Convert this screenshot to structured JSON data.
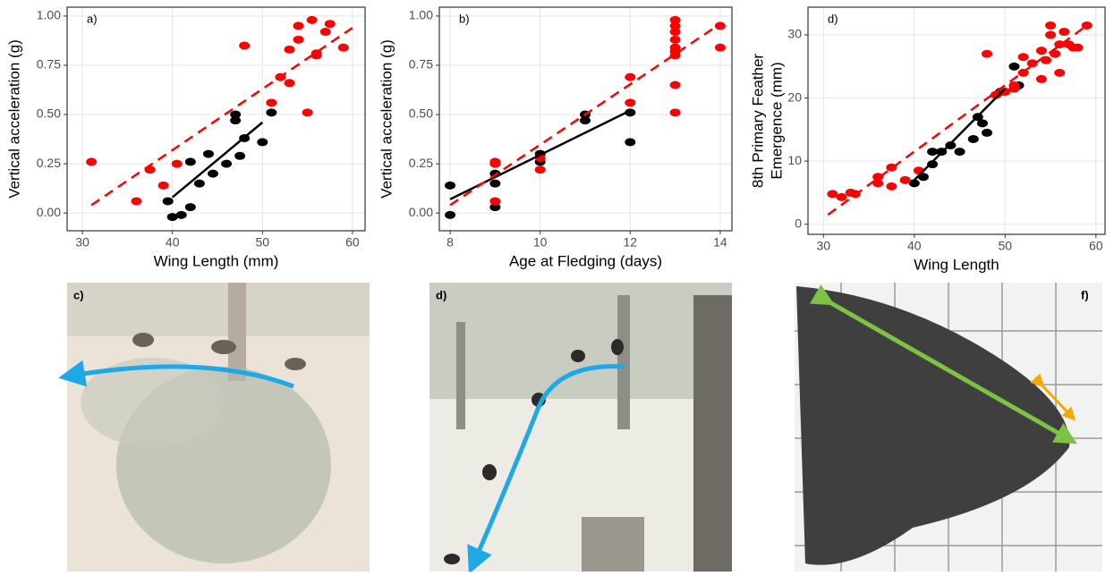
{
  "chart_data": [
    {
      "type": "scatter",
      "panel_label": "a)",
      "xlabel": "Wing Length (mm)",
      "ylabel": "Vertical acceleration (g)",
      "xlim": [
        28.3,
        61.4
      ],
      "ylim": [
        -0.09,
        1.045
      ],
      "xticks": [
        30,
        40,
        50,
        60
      ],
      "yticks": [
        {
          "value": 0,
          "label": "0.00"
        },
        {
          "value": 0.25,
          "label": "0.25"
        },
        {
          "value": 0.5,
          "label": "0.50"
        },
        {
          "value": 0.75,
          "label": "0.75"
        },
        {
          "value": 1,
          "label": "1.00"
        }
      ],
      "grid": true,
      "series": [
        {
          "color": "#000000",
          "x": [
            39.5,
            40,
            41,
            42,
            42,
            43,
            44,
            44.5,
            46,
            47,
            47,
            47.5,
            48,
            50,
            51
          ],
          "values": [
            0.06,
            -0.02,
            -0.01,
            0.03,
            0.26,
            0.15,
            0.3,
            0.2,
            0.25,
            0.5,
            0.47,
            0.29,
            0.38,
            0.36,
            0.51
          ]
        },
        {
          "color": "#ff0000",
          "x": [
            31,
            36,
            37.5,
            39,
            40.5,
            48,
            51,
            52,
            53,
            53,
            54,
            54,
            55,
            55.5,
            56,
            56,
            57,
            57.5,
            59
          ],
          "values": [
            0.26,
            0.06,
            0.22,
            0.14,
            0.25,
            0.85,
            0.56,
            0.69,
            0.66,
            0.83,
            0.95,
            0.88,
            0.51,
            0.98,
            0.8,
            0.81,
            0.92,
            0.96,
            0.84
          ]
        }
      ],
      "fits": [
        {
          "color": "#000000",
          "dashed": false,
          "x": [
            40,
            50
          ],
          "values": [
            0.08,
            0.46
          ]
        },
        {
          "color": "#ff0000",
          "dashed": true,
          "x": [
            31,
            60
          ],
          "values": [
            0.04,
            0.94
          ]
        }
      ]
    },
    {
      "type": "scatter",
      "panel_label": "b)",
      "xlabel": "Age at Fledging (days)",
      "ylabel": "Vertical acceleration (g)",
      "xlim": [
        7.76,
        14.26
      ],
      "ylim": [
        -0.09,
        1.045
      ],
      "xticks": [
        8,
        10,
        12,
        14
      ],
      "yticks": [
        {
          "value": 0,
          "label": "0.00"
        },
        {
          "value": 0.25,
          "label": "0.25"
        },
        {
          "value": 0.5,
          "label": "0.50"
        },
        {
          "value": 0.75,
          "label": "0.75"
        },
        {
          "value": 1,
          "label": "1.00"
        }
      ],
      "grid": true,
      "series": [
        {
          "color": "#000000",
          "x": [
            8,
            8,
            9,
            9,
            9,
            10,
            10,
            11,
            11,
            12,
            12
          ],
          "values": [
            0.14,
            -0.01,
            0.2,
            0.15,
            0.03,
            0.3,
            0.26,
            0.5,
            0.47,
            0.51,
            0.36
          ]
        },
        {
          "color": "#ff0000",
          "x": [
            9,
            9,
            9,
            10,
            10,
            12,
            12,
            13,
            13,
            13,
            13,
            13,
            13,
            13,
            13,
            13,
            14,
            14
          ],
          "values": [
            0.26,
            0.25,
            0.06,
            0.22,
            0.28,
            0.56,
            0.69,
            0.98,
            0.95,
            0.92,
            0.88,
            0.84,
            0.82,
            0.8,
            0.65,
            0.51,
            0.95,
            0.84
          ]
        }
      ],
      "fits": [
        {
          "color": "#000000",
          "dashed": false,
          "x": [
            8,
            12
          ],
          "values": [
            0.07,
            0.52
          ]
        },
        {
          "color": "#ff0000",
          "dashed": true,
          "x": [
            8,
            14
          ],
          "values": [
            0.04,
            0.96
          ]
        }
      ]
    },
    {
      "type": "scatter",
      "panel_label": "d)",
      "xlabel": "Wing Length",
      "ylabel": [
        "8th Primary Feather",
        "Emergence (mm)"
      ],
      "xlim": [
        28.3,
        61
      ],
      "ylim": [
        -1.6,
        34.4
      ],
      "xticks": [
        30,
        40,
        50,
        60
      ],
      "yticks": [
        0,
        10,
        20,
        30
      ],
      "grid": true,
      "series": [
        {
          "color": "#000000",
          "x": [
            40,
            41,
            42,
            42,
            43,
            44,
            45,
            46.5,
            47,
            47.5,
            48,
            49,
            49.5,
            51,
            51.5
          ],
          "values": [
            6.5,
            7.5,
            9.5,
            11.5,
            11.5,
            12.5,
            11.5,
            13.5,
            17,
            16,
            14.5,
            20.5,
            21,
            25,
            22
          ]
        },
        {
          "color": "#ff0000",
          "x": [
            31,
            32,
            33,
            33.5,
            36,
            36,
            37.5,
            37.5,
            39,
            40.5,
            48,
            49,
            50,
            51,
            51,
            52,
            52,
            53,
            54,
            54,
            54.5,
            55,
            55,
            55.5,
            56,
            56,
            56.5,
            57,
            57.5,
            58,
            59
          ],
          "values": [
            4.8,
            4.3,
            5,
            4.8,
            7.5,
            6.5,
            9,
            6,
            7,
            8.5,
            27,
            20.5,
            21,
            21.5,
            22,
            26.5,
            24,
            25.5,
            23,
            27.5,
            26,
            31.5,
            30,
            27,
            28.5,
            24,
            30.5,
            28.5,
            28,
            28,
            31.5
          ]
        }
      ],
      "fits": [
        {
          "color": "#000000",
          "dashed": false,
          "x": [
            40,
            50
          ],
          "values": [
            7,
            21.5
          ]
        },
        {
          "color": "#ff0000",
          "dashed": true,
          "x": [
            30.5,
            59
          ],
          "values": [
            1.5,
            31.5
          ]
        }
      ]
    }
  ],
  "photos": [
    {
      "label": "c)"
    },
    {
      "label": "d)"
    },
    {
      "label": "f)"
    }
  ]
}
